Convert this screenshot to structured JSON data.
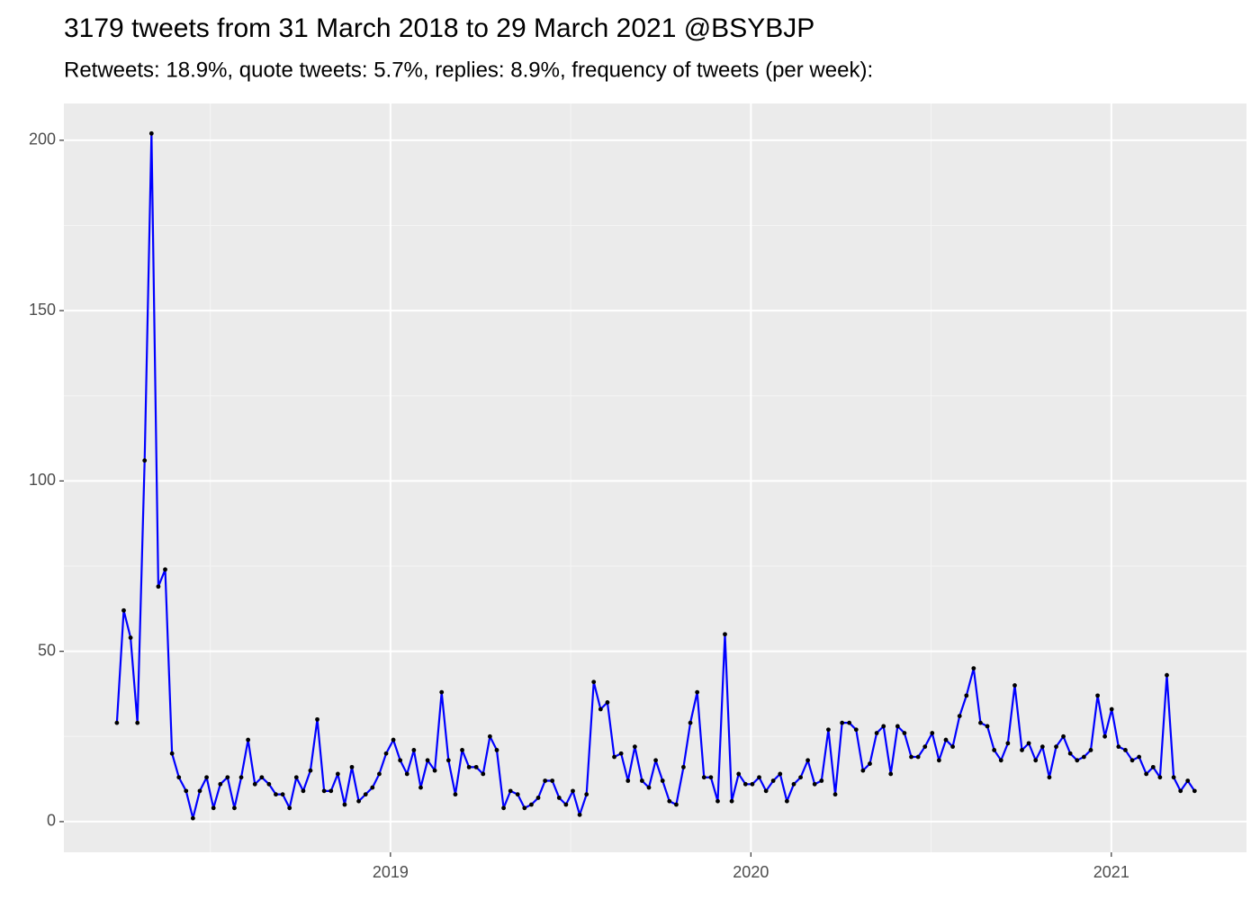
{
  "chart_data": {
    "type": "line",
    "title": "3179 tweets from 31 March 2018 to 29 March 2021 @BSYBJP",
    "subtitle": "Retweets: 18.9%, quote tweets: 5.7%, replies: 8.9%, frequency of tweets (per week):",
    "x": [
      2018.241,
      2018.26,
      2018.279,
      2018.298,
      2018.318,
      2018.337,
      2018.356,
      2018.375,
      2018.394,
      2018.413,
      2018.433,
      2018.452,
      2018.471,
      2018.49,
      2018.509,
      2018.528,
      2018.548,
      2018.567,
      2018.586,
      2018.605,
      2018.624,
      2018.643,
      2018.663,
      2018.682,
      2018.701,
      2018.72,
      2018.739,
      2018.758,
      2018.778,
      2018.797,
      2018.816,
      2018.835,
      2018.854,
      2018.873,
      2018.893,
      2018.912,
      2018.931,
      2018.95,
      2018.969,
      2018.988,
      2019.008,
      2019.027,
      2019.046,
      2019.065,
      2019.084,
      2019.103,
      2019.123,
      2019.142,
      2019.161,
      2019.18,
      2019.199,
      2019.218,
      2019.238,
      2019.257,
      2019.276,
      2019.295,
      2019.314,
      2019.333,
      2019.353,
      2019.372,
      2019.391,
      2019.41,
      2019.429,
      2019.449,
      2019.468,
      2019.487,
      2019.506,
      2019.525,
      2019.544,
      2019.564,
      2019.583,
      2019.602,
      2019.621,
      2019.64,
      2019.659,
      2019.678,
      2019.698,
      2019.717,
      2019.736,
      2019.755,
      2019.774,
      2019.793,
      2019.813,
      2019.832,
      2019.851,
      2019.87,
      2019.889,
      2019.908,
      2019.928,
      2019.947,
      2019.966,
      2019.985,
      2020.004,
      2020.023,
      2020.042,
      2020.062,
      2020.081,
      2020.1,
      2020.119,
      2020.138,
      2020.158,
      2020.177,
      2020.196,
      2020.215,
      2020.234,
      2020.253,
      2020.273,
      2020.292,
      2020.311,
      2020.33,
      2020.349,
      2020.368,
      2020.388,
      2020.407,
      2020.426,
      2020.445,
      2020.464,
      2020.483,
      2020.503,
      2020.522,
      2020.541,
      2020.56,
      2020.579,
      2020.598,
      2020.618,
      2020.637,
      2020.656,
      2020.675,
      2020.694,
      2020.713,
      2020.732,
      2020.752,
      2020.771,
      2020.79,
      2020.809,
      2020.828,
      2020.847,
      2020.867,
      2020.886,
      2020.905,
      2020.924,
      2020.943,
      2020.962,
      2020.982,
      2021.001,
      2021.02,
      2021.039,
      2021.058,
      2021.077,
      2021.097,
      2021.116,
      2021.135,
      2021.154,
      2021.173,
      2021.192,
      2021.212,
      2021.231
    ],
    "values": [
      29,
      62,
      54,
      29,
      106,
      202,
      69,
      74,
      20,
      13,
      9,
      1,
      9,
      13,
      4,
      11,
      13,
      4,
      13,
      24,
      11,
      13,
      11,
      8,
      8,
      4,
      13,
      9,
      15,
      30,
      9,
      9,
      14,
      5,
      16,
      6,
      8,
      10,
      14,
      20,
      24,
      18,
      14,
      21,
      10,
      18,
      15,
      38,
      18,
      8,
      21,
      16,
      16,
      14,
      25,
      21,
      4,
      9,
      8,
      4,
      5,
      7,
      12,
      12,
      7,
      5,
      9,
      2,
      8,
      41,
      33,
      35,
      19,
      20,
      12,
      22,
      12,
      10,
      18,
      12,
      6,
      5,
      16,
      29,
      38,
      13,
      13,
      6,
      55,
      6,
      14,
      11,
      11,
      13,
      9,
      12,
      14,
      6,
      11,
      13,
      18,
      11,
      12,
      27,
      8,
      29,
      29,
      27,
      15,
      17,
      26,
      28,
      14,
      28,
      26,
      19,
      19,
      22,
      26,
      18,
      24,
      22,
      31,
      37,
      45,
      29,
      28,
      21,
      18,
      23,
      40,
      21,
      23,
      18,
      22,
      13,
      22,
      25,
      20,
      18,
      19,
      21,
      37,
      25,
      33,
      22,
      21,
      18,
      19,
      14,
      16,
      13,
      43,
      13,
      9,
      12,
      9
    ],
    "line_color": "#0000ff",
    "point_color": "#000000",
    "xlim": [
      2018.094,
      2021.375
    ],
    "xticks": [
      2019,
      2020,
      2021
    ],
    "ylim": [
      -9,
      210.8
    ],
    "yticks": [
      0,
      50,
      100,
      150,
      200
    ],
    "grid": true
  }
}
